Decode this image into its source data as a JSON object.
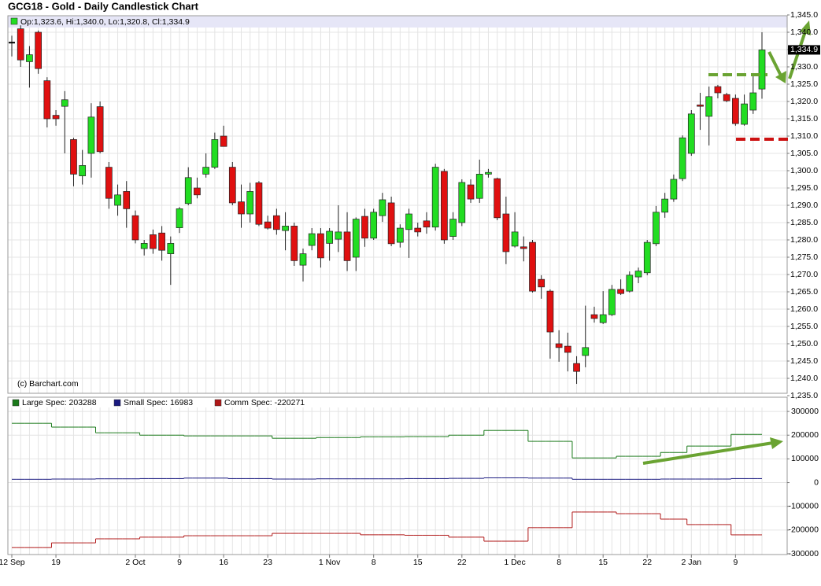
{
  "chart_data": [
    {
      "type": "candlestick",
      "title": "GCG18 - Gold - Daily Candlestick Chart",
      "info": "Op:1,323.6, Hi:1,340.0, Lo:1,320.8, Cl:1,334.9",
      "credit": "(c) Barchart.com",
      "price_tag": "1,334.9",
      "up_color": "#22dd22",
      "down_color": "#e01010",
      "grid": true,
      "categories": [
        "12 Sep",
        null,
        null,
        null,
        null,
        "19",
        null,
        null,
        null,
        null,
        null,
        null,
        null,
        null,
        "2 Oct",
        null,
        null,
        null,
        null,
        "9",
        null,
        null,
        null,
        null,
        "16",
        null,
        null,
        null,
        null,
        "23",
        null,
        null,
        null,
        null,
        null,
        null,
        "1 Nov",
        null,
        null,
        null,
        null,
        "8",
        null,
        null,
        null,
        null,
        "15",
        null,
        null,
        null,
        null,
        "22",
        null,
        null,
        null,
        null,
        null,
        "1 Dec",
        null,
        null,
        null,
        null,
        "8",
        null,
        null,
        null,
        null,
        "15",
        null,
        null,
        null,
        null,
        "22",
        null,
        null,
        null,
        null,
        "2 Jan",
        null,
        null,
        null,
        null,
        "9",
        null,
        null,
        null
      ],
      "open": [
        1337,
        1341,
        1331.5,
        1340,
        1326,
        1316,
        1318.6,
        1309,
        1298.5,
        1305,
        1318.5,
        1301,
        1290,
        1294,
        1287,
        1277.5,
        1281.5,
        1282,
        1276,
        1283.5,
        1290.5,
        1295,
        1299,
        1301,
        1310,
        1301,
        1291,
        1287.5,
        1296.5,
        1285.2,
        1287,
        1282.7,
        1284,
        1272.7,
        1278.4,
        1281.8,
        1279,
        1280.2,
        1282.3,
        1275,
        1286.8,
        1280.5,
        1287,
        1290.7,
        1279.3,
        1283,
        1283.4,
        1285.5,
        1283.7,
        1299.8,
        1281,
        1285,
        1295.9,
        1292,
        1299,
        1297.7,
        1287.5,
        1278.2,
        1278,
        1279.3,
        1268.6,
        1265.2,
        1250,
        1249.3,
        1244.3,
        1246.6,
        1258.4,
        1256.1,
        1258.4,
        1265.7,
        1265.2,
        1269.3,
        1270.5,
        1278.9,
        1288,
        1291.8,
        1297.7,
        1305,
        1319,
        1315.7,
        1324.3,
        1322,
        1320.9,
        1313.4,
        1317.5,
        1323.6
      ],
      "high": [
        1339,
        1342,
        1336,
        1340.5,
        1327,
        1317.5,
        1323,
        1309.5,
        1306,
        1319.5,
        1320,
        1302.5,
        1296,
        1297,
        1288.5,
        1280,
        1283,
        1284,
        1281,
        1289.5,
        1301,
        1298,
        1305,
        1311,
        1313,
        1302.5,
        1296,
        1296.5,
        1297,
        1287,
        1289,
        1288,
        1285,
        1277.5,
        1283.4,
        1283.4,
        1283.4,
        1290,
        1288,
        1286.5,
        1289,
        1289,
        1293.6,
        1292.5,
        1284.5,
        1289,
        1285,
        1288,
        1302,
        1300.5,
        1288,
        1297.5,
        1297.5,
        1303.2,
        1300.5,
        1298,
        1292.5,
        1288,
        1281,
        1280,
        1269.8,
        1265.7,
        1253.9,
        1253.2,
        1246.4,
        1261,
        1260.7,
        1265.2,
        1267,
        1268.6,
        1270.9,
        1272,
        1280,
        1289.8,
        1293.6,
        1298.9,
        1310.2,
        1317.5,
        1322.5,
        1324.3,
        1324.8,
        1322.5,
        1322,
        1322,
        1327.7,
        1340
      ],
      "low": [
        1333,
        1330,
        1324,
        1328,
        1312.5,
        1313,
        1305,
        1295.5,
        1296,
        1298,
        1305,
        1289,
        1287,
        1283.5,
        1279,
        1275.5,
        1276,
        1274,
        1267,
        1282,
        1290,
        1292,
        1298,
        1300.5,
        1307,
        1290,
        1283.5,
        1285,
        1284,
        1283,
        1281.5,
        1277,
        1272.5,
        1268,
        1277,
        1272,
        1274,
        1276.5,
        1271,
        1271,
        1278,
        1280,
        1285.2,
        1278.2,
        1277.8,
        1274.8,
        1281,
        1281.8,
        1282.7,
        1278.9,
        1280,
        1284,
        1290.7,
        1290.7,
        1298,
        1285.7,
        1273,
        1277.8,
        1273.8,
        1264.8,
        1263,
        1245.7,
        1244.8,
        1242,
        1238.4,
        1243.2,
        1256.1,
        1255.7,
        1258,
        1264.1,
        1264.8,
        1267.5,
        1269.8,
        1278.2,
        1286.4,
        1291,
        1297,
        1304.3,
        1311.8,
        1307.3,
        1320.9,
        1319.8,
        1313,
        1313,
        1316.4,
        1320.8
      ],
      "close": [
        1337,
        1332,
        1333.5,
        1329.5,
        1315,
        1315,
        1320.5,
        1299,
        1301.5,
        1315.5,
        1305.5,
        1292,
        1293,
        1289,
        1280,
        1279,
        1277.5,
        1277,
        1279,
        1289,
        1298,
        1293,
        1301,
        1309,
        1307,
        1290.7,
        1287.5,
        1294,
        1284.5,
        1283.4,
        1283,
        1284,
        1274,
        1276,
        1281.8,
        1274.8,
        1282.5,
        1282.3,
        1274,
        1286,
        1280.5,
        1288,
        1291.6,
        1278.9,
        1283.4,
        1287.5,
        1282.3,
        1283.7,
        1301,
        1280,
        1286,
        1296.6,
        1291.8,
        1299,
        1299.5,
        1286.4,
        1276.6,
        1282.3,
        1277.5,
        1265.2,
        1266.4,
        1253.4,
        1248.9,
        1247.5,
        1242,
        1248.9,
        1257.3,
        1258.4,
        1265.7,
        1264.5,
        1269.8,
        1271,
        1279.3,
        1288,
        1291.8,
        1297.5,
        1309.5,
        1316.4,
        1318.6,
        1321.4,
        1322.5,
        1320.2,
        1313.6,
        1319.3,
        1322.5,
        1334.9
      ],
      "ylim": [
        1235,
        1345
      ],
      "yticks": [
        {
          "value": 1235,
          "label": "1,235.0"
        },
        {
          "value": 1240,
          "label": "1,240.0"
        },
        {
          "value": 1245,
          "label": "1,245.0"
        },
        {
          "value": 1250,
          "label": "1,250.0"
        },
        {
          "value": 1255,
          "label": "1,255.0"
        },
        {
          "value": 1260,
          "label": "1,260.0"
        },
        {
          "value": 1265,
          "label": "1,265.0"
        },
        {
          "value": 1270,
          "label": "1,270.0"
        },
        {
          "value": 1275,
          "label": "1,275.0"
        },
        {
          "value": 1280,
          "label": "1,280.0"
        },
        {
          "value": 1285,
          "label": "1,285.0"
        },
        {
          "value": 1290,
          "label": "1,290.0"
        },
        {
          "value": 1295,
          "label": "1,295.0"
        },
        {
          "value": 1300,
          "label": "1,300.0"
        },
        {
          "value": 1305,
          "label": "1,305.0"
        },
        {
          "value": 1310,
          "label": "1,310.0"
        },
        {
          "value": 1315,
          "label": "1,315.0"
        },
        {
          "value": 1320,
          "label": "1,320.0"
        },
        {
          "value": 1325,
          "label": "1,325.0"
        },
        {
          "value": 1330,
          "label": "1,330.0"
        },
        {
          "value": 1335,
          "label": "1,335.0"
        },
        {
          "value": 1340,
          "label": "1,340.0"
        },
        {
          "value": 1345,
          "label": "1,345.0"
        }
      ]
    },
    {
      "type": "step",
      "grid": true,
      "series": [
        {
          "name": "Large Spec: 203288",
          "color": "#1a7a1a",
          "values": [
            250000,
            250000,
            250000,
            250000,
            250000,
            234000,
            234000,
            234000,
            234000,
            234000,
            210000,
            210000,
            210000,
            210000,
            210000,
            200000,
            200000,
            200000,
            200000,
            200000,
            197000,
            197000,
            197000,
            197000,
            197000,
            197000,
            197000,
            197000,
            197000,
            197000,
            187000,
            187000,
            187000,
            187000,
            187000,
            190000,
            190000,
            190000,
            190000,
            190000,
            193000,
            193000,
            193000,
            193000,
            193000,
            194000,
            194000,
            194000,
            194000,
            194000,
            200000,
            200000,
            200000,
            200000,
            220000,
            220000,
            220000,
            220000,
            220000,
            174000,
            174000,
            174000,
            174000,
            174000,
            104000,
            104000,
            104000,
            104000,
            104000,
            111000,
            111000,
            111000,
            111000,
            111000,
            127000,
            127000,
            127000,
            154000,
            154000,
            154000,
            154000,
            154000,
            203288,
            203288,
            203288,
            203288
          ]
        },
        {
          "name": "Small Spec: 16983",
          "color": "#1a1a80",
          "values": [
            14000,
            14000,
            14000,
            14000,
            14000,
            15000,
            15000,
            15000,
            15000,
            15000,
            16000,
            16000,
            16000,
            16000,
            16000,
            17000,
            17000,
            17000,
            17000,
            17000,
            19000,
            19000,
            19000,
            19000,
            19000,
            17000,
            17000,
            17000,
            17000,
            17000,
            15000,
            15000,
            15000,
            15000,
            15000,
            16000,
            16000,
            16000,
            16000,
            16000,
            16000,
            16000,
            16000,
            16000,
            16000,
            17000,
            17000,
            17000,
            17000,
            17000,
            18000,
            18000,
            18000,
            18000,
            20000,
            20000,
            20000,
            20000,
            20000,
            19000,
            19000,
            19000,
            19000,
            19000,
            14000,
            14000,
            14000,
            14000,
            14000,
            14000,
            14000,
            14000,
            14000,
            14000,
            15000,
            15000,
            15000,
            15000,
            15000,
            15000,
            15000,
            15000,
            16983,
            16983,
            16983,
            16983
          ]
        },
        {
          "name": "Comm Spec: -220271",
          "color": "#b01818",
          "values": [
            -274000,
            -274000,
            -274000,
            -274000,
            -274000,
            -254000,
            -254000,
            -254000,
            -254000,
            -254000,
            -237000,
            -237000,
            -237000,
            -237000,
            -237000,
            -230000,
            -230000,
            -230000,
            -230000,
            -230000,
            -224000,
            -224000,
            -224000,
            -224000,
            -224000,
            -224000,
            -224000,
            -224000,
            -224000,
            -224000,
            -214000,
            -214000,
            -214000,
            -214000,
            -214000,
            -214000,
            -214000,
            -214000,
            -214000,
            -214000,
            -220000,
            -220000,
            -220000,
            -220000,
            -220000,
            -222000,
            -222000,
            -222000,
            -222000,
            -222000,
            -230000,
            -230000,
            -230000,
            -230000,
            -247000,
            -247000,
            -247000,
            -247000,
            -247000,
            -190000,
            -190000,
            -190000,
            -190000,
            -190000,
            -124000,
            -124000,
            -124000,
            -124000,
            -124000,
            -131000,
            -131000,
            -131000,
            -131000,
            -131000,
            -154000,
            -154000,
            -154000,
            -177000,
            -177000,
            -177000,
            -177000,
            -177000,
            -220271,
            -220271,
            -220271,
            -220271
          ]
        }
      ],
      "ylim": [
        -300000,
        360000
      ],
      "yticks": [
        300000,
        200000,
        100000,
        0,
        -100000,
        -200000,
        -300000
      ]
    }
  ]
}
